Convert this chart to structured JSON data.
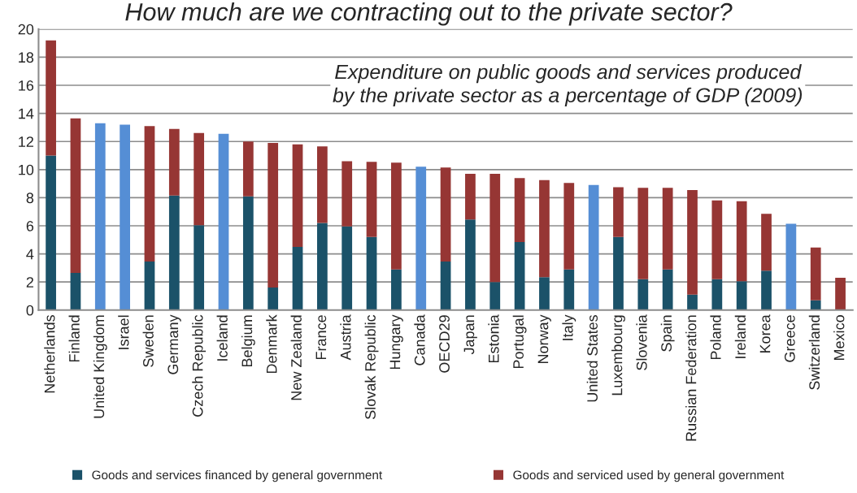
{
  "chart_data": {
    "type": "bar",
    "stacked": true,
    "title": "How much are we contracting out to the private sector?",
    "annotations": [
      "Expenditure on public goods and services produced\nby the private sector as a percentage of GDP (2009)"
    ],
    "categories": [
      "Netherlands",
      "Finland",
      "United Kingdom",
      "Israel",
      "Sweden",
      "Germany",
      "Czech Republic",
      "Iceland",
      "Belgium",
      "Denmark",
      "New Zealand",
      "France",
      "Austria",
      "Slovak Republic",
      "Hungary",
      "Canada",
      "OECD29",
      "Japan",
      "Estonia",
      "Portugal",
      "Norway",
      "Italy",
      "United States",
      "Luxembourg",
      "Slovenia",
      "Spain",
      "Russian Federation",
      "Poland",
      "Ireland",
      "Korea",
      "Greece",
      "Switzerland",
      "Mexico"
    ],
    "series": [
      {
        "name": "Goods and services financed by general government",
        "color": "#1b5269",
        "colors": [
          "#1b5269",
          "#1b5269",
          "#558ed5",
          "#558ed5",
          "#1b5269",
          "#1b5269",
          "#1b5269",
          "#558ed5",
          "#1b5269",
          "#1b5269",
          "#1b5269",
          "#1b5269",
          "#1b5269",
          "#1b5269",
          "#1b5269",
          "#558ed5",
          "#1b5269",
          "#1b5269",
          "#1b5269",
          "#1b5269",
          "#1b5269",
          "#1b5269",
          "#558ed5",
          "#1b5269",
          "#1b5269",
          "#1b5269",
          "#1b5269",
          "#1b5269",
          "#1b5269",
          "#1b5269",
          "#558ed5",
          "#1b5269",
          "#1b5269"
        ],
        "values": [
          11.0,
          2.65,
          13.3,
          13.2,
          3.45,
          8.15,
          6.05,
          12.55,
          8.1,
          1.6,
          4.5,
          6.2,
          5.95,
          5.2,
          2.9,
          10.2,
          3.45,
          6.45,
          2.0,
          4.85,
          2.35,
          2.9,
          8.9,
          5.2,
          2.2,
          2.9,
          1.1,
          2.2,
          2.05,
          2.8,
          6.15,
          0.7,
          0
        ]
      },
      {
        "name": "Goods and serviced used by general government",
        "color": "#963634",
        "values": [
          8.2,
          11.0,
          null,
          null,
          9.65,
          4.75,
          6.55,
          null,
          3.9,
          10.3,
          7.3,
          5.45,
          4.65,
          5.35,
          7.6,
          null,
          6.7,
          3.25,
          7.7,
          4.55,
          6.9,
          6.15,
          null,
          3.55,
          6.5,
          5.8,
          7.45,
          5.6,
          5.7,
          4.05,
          null,
          3.75,
          2.3
        ]
      }
    ],
    "ylim": [
      0,
      20
    ],
    "yticks": [
      0,
      2,
      4,
      6,
      8,
      10,
      12,
      14,
      16,
      18,
      20
    ],
    "grid": "y",
    "legend": "bottom"
  }
}
